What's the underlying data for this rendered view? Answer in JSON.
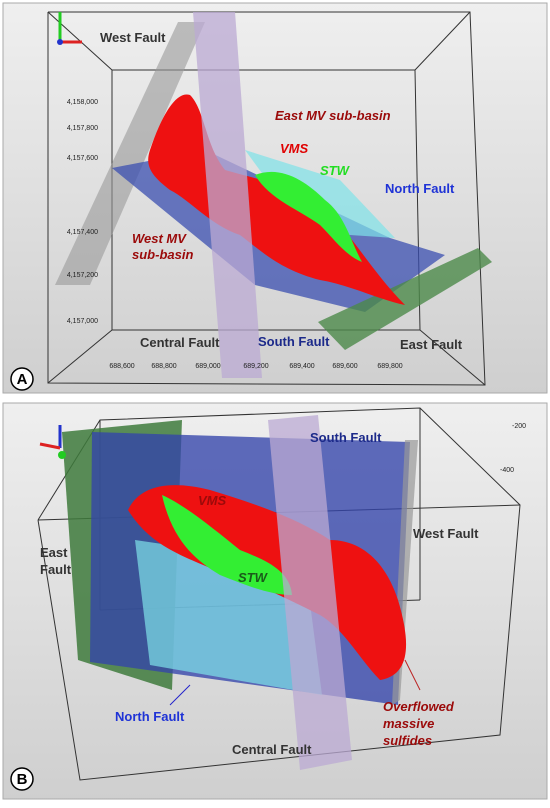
{
  "panels": [
    {
      "letter": "A",
      "labels": [
        "West Fault",
        "East MV sub-basin",
        "VMS",
        "STW",
        "North Fault",
        [
          "West MV",
          "sub-basin"
        ],
        "Central Fault",
        "South Fault",
        "East Fault"
      ],
      "y_ticks": [
        "4,158,000",
        "4,157,800",
        "4,157,600",
        "4,157,400",
        "4,157,200",
        "4,157,000"
      ],
      "x_ticks": [
        "688,600",
        "688,800",
        "689,000",
        "689,200",
        "689,400",
        "689,600",
        "689,800"
      ]
    },
    {
      "letter": "B",
      "labels": [
        "South Fault",
        "VMS",
        [
          "East",
          "Fault"
        ],
        "West Fault",
        "STW",
        "North Fault",
        "Central Fault",
        [
          "Overflowed",
          "massive",
          "sulfides"
        ]
      ],
      "ticks": [
        "-200",
        "-400"
      ]
    }
  ]
}
